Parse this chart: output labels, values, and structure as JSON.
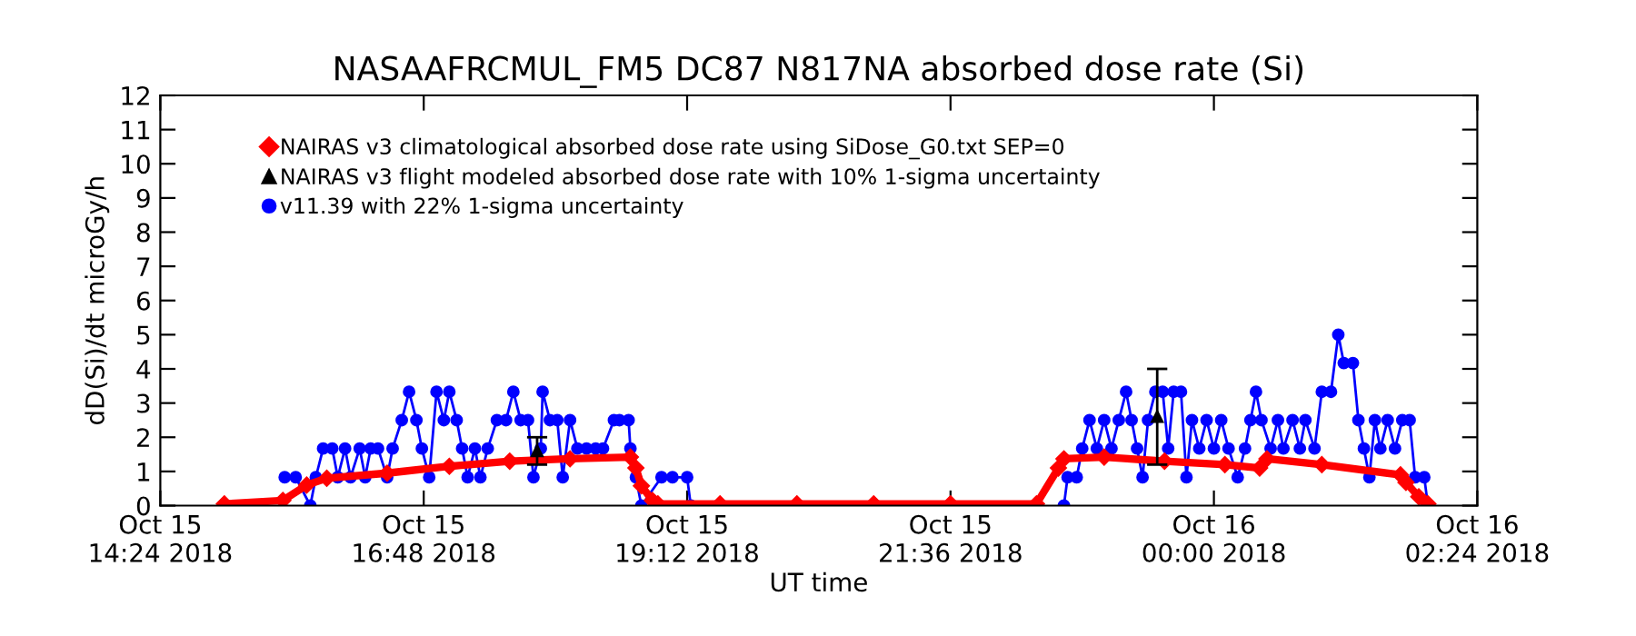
{
  "chart_data": {
    "type": "line",
    "title": "NASAAFRCMUL_FM5 DC87 N817NA absorbed dose rate (Si)",
    "xlabel": "UT time",
    "ylabel": "dD(Si)/dt microGy/h",
    "xlim": [
      "2018-10-15T14:24",
      "2018-10-16T02:24"
    ],
    "xticks": [
      {
        "value": "2018-10-15T14:24",
        "label": "Oct 15\n14:24 2018"
      },
      {
        "value": "2018-10-15T16:48",
        "label": "Oct 15\n16:48 2018"
      },
      {
        "value": "2018-10-15T19:12",
        "label": "Oct 15\n19:12 2018"
      },
      {
        "value": "2018-10-15T21:36",
        "label": "Oct 15\n21:36 2018"
      },
      {
        "value": "2018-10-16T00:00",
        "label": "Oct 16\n00:00 2018"
      },
      {
        "value": "2018-10-16T02:24",
        "label": "Oct 16\n02:24 2018"
      }
    ],
    "ylim": [
      0,
      12
    ],
    "yticks": [
      0,
      1,
      2,
      3,
      4,
      5,
      6,
      7,
      8,
      9,
      10,
      11,
      12
    ],
    "grid": false,
    "legend": "top left",
    "series": [
      {
        "name": "NAIRAS v3 climatological absorbed dose rate using SiDose_G0.txt SEP=0",
        "marker": "diamond",
        "line_style": "solid",
        "color": "#ff0000",
        "x": [
          "2018-10-15T14:59",
          "2018-10-15T15:31",
          "2018-10-15T15:44",
          "2018-10-15T15:55",
          "2018-10-15T16:28",
          "2018-10-15T17:02",
          "2018-10-15T17:35",
          "2018-10-15T18:08",
          "2018-10-15T18:41",
          "2018-10-15T18:44",
          "2018-10-15T18:47",
          "2018-10-15T18:53",
          "2018-10-15T18:56",
          "2018-10-15T19:30",
          "2018-10-15T20:12",
          "2018-10-15T20:54",
          "2018-10-15T21:36",
          "2018-10-15T22:23",
          "2018-10-15T22:35",
          "2018-10-15T22:38",
          "2018-10-15T23:00",
          "2018-10-15T23:33",
          "2018-10-16T00:06",
          "2018-10-16T00:25",
          "2018-10-16T00:29",
          "2018-10-16T00:59",
          "2018-10-16T01:42",
          "2018-10-16T01:45",
          "2018-10-16T01:52",
          "2018-10-16T01:57"
        ],
        "values": [
          0.05,
          0.15,
          0.6,
          0.8,
          0.95,
          1.15,
          1.3,
          1.37,
          1.42,
          1.1,
          0.58,
          0.15,
          0.05,
          0.05,
          0.05,
          0.05,
          0.05,
          0.05,
          1.1,
          1.37,
          1.42,
          1.3,
          1.2,
          1.1,
          1.37,
          1.2,
          0.9,
          0.68,
          0.26,
          0.05
        ]
      },
      {
        "name": "NAIRAS v3 flight modeled absorbed dose rate with 10% 1-sigma uncertainty",
        "type": "scatter",
        "marker": "triangle",
        "color": "#000000",
        "x": [
          "2018-10-15T17:50",
          "2018-10-15T23:29"
        ],
        "values": [
          1.6,
          2.6
        ],
        "errors": [
          [
            1.2,
            2.0
          ],
          [
            1.2,
            4.0
          ]
        ]
      },
      {
        "name": "v11.39 with 22% 1-sigma uncertainty",
        "marker": "circle",
        "line_style": "solid",
        "color": "#0000ff",
        "x": [
          "2018-10-15T15:32",
          "2018-10-15T15:38",
          "2018-10-15T15:46",
          "2018-10-15T15:49",
          "2018-10-15T15:53",
          "2018-10-15T15:58",
          "2018-10-15T16:01",
          "2018-10-15T16:05",
          "2018-10-15T16:08",
          "2018-10-15T16:13",
          "2018-10-15T16:16",
          "2018-10-15T16:19",
          "2018-10-15T16:23",
          "2018-10-15T16:28",
          "2018-10-15T16:31",
          "2018-10-15T16:36",
          "2018-10-15T16:40",
          "2018-10-15T16:44",
          "2018-10-15T16:47",
          "2018-10-15T16:51",
          "2018-10-15T16:55",
          "2018-10-15T16:59",
          "2018-10-15T17:02",
          "2018-10-15T17:06",
          "2018-10-15T17:09",
          "2018-10-15T17:12",
          "2018-10-15T17:16",
          "2018-10-15T17:19",
          "2018-10-15T17:23",
          "2018-10-15T17:28",
          "2018-10-15T17:33",
          "2018-10-15T17:37",
          "2018-10-15T17:41",
          "2018-10-15T17:45",
          "2018-10-15T17:48",
          "2018-10-15T17:52",
          "2018-10-15T17:53",
          "2018-10-15T17:57",
          "2018-10-15T18:01",
          "2018-10-15T18:04",
          "2018-10-15T18:08",
          "2018-10-15T18:12",
          "2018-10-15T18:17",
          "2018-10-15T18:22",
          "2018-10-15T18:26",
          "2018-10-15T18:32",
          "2018-10-15T18:35",
          "2018-10-15T18:40",
          "2018-10-15T18:41",
          "2018-10-15T18:44",
          "2018-10-15T18:47",
          "2018-10-15T18:58",
          "2018-10-15T19:04",
          "2018-10-15T19:12",
          "2018-10-15T19:14",
          "2018-10-15T20:54",
          "2018-10-15T22:38",
          "2018-10-15T22:40",
          "2018-10-15T22:45",
          "2018-10-15T22:48",
          "2018-10-15T22:52",
          "2018-10-15T22:56",
          "2018-10-15T23:00",
          "2018-10-15T23:04",
          "2018-10-15T23:08",
          "2018-10-15T23:12",
          "2018-10-15T23:15",
          "2018-10-15T23:18",
          "2018-10-15T23:21",
          "2018-10-15T23:24",
          "2018-10-15T23:28",
          "2018-10-15T23:32",
          "2018-10-15T23:35",
          "2018-10-15T23:38",
          "2018-10-15T23:42",
          "2018-10-15T23:45",
          "2018-10-15T23:48",
          "2018-10-15T23:52",
          "2018-10-15T23:56",
          "2018-10-16T00:00",
          "2018-10-16T00:04",
          "2018-10-16T00:08",
          "2018-10-16T00:13",
          "2018-10-16T00:17",
          "2018-10-16T00:20",
          "2018-10-16T00:23",
          "2018-10-16T00:26",
          "2018-10-16T00:31",
          "2018-10-16T00:35",
          "2018-10-16T00:38",
          "2018-10-16T00:43",
          "2018-10-16T00:47",
          "2018-10-16T00:50",
          "2018-10-16T00:55",
          "2018-10-16T00:59",
          "2018-10-16T01:04",
          "2018-10-16T01:08",
          "2018-10-16T01:11",
          "2018-10-16T01:16",
          "2018-10-16T01:19",
          "2018-10-16T01:22",
          "2018-10-16T01:25",
          "2018-10-16T01:28",
          "2018-10-16T01:31",
          "2018-10-16T01:35",
          "2018-10-16T01:39",
          "2018-10-16T01:43",
          "2018-10-16T01:47",
          "2018-10-16T01:50",
          "2018-10-16T01:55",
          "2018-10-16T01:57"
        ],
        "values": [
          0.83,
          0.83,
          0,
          0.83,
          1.67,
          1.67,
          0.83,
          1.67,
          0.83,
          1.67,
          0.83,
          1.67,
          1.67,
          0.83,
          1.67,
          2.5,
          3.33,
          2.5,
          1.67,
          0.83,
          3.33,
          2.5,
          3.33,
          2.5,
          1.67,
          0.83,
          1.67,
          0.83,
          1.67,
          2.5,
          2.5,
          3.33,
          2.5,
          2.5,
          0.83,
          1.67,
          3.33,
          2.5,
          2.5,
          0.83,
          2.5,
          1.67,
          1.67,
          1.67,
          1.67,
          2.5,
          2.5,
          2.5,
          1.67,
          0.83,
          0,
          0.83,
          0.83,
          0.83,
          0,
          null,
          0,
          0.83,
          0.83,
          1.67,
          2.5,
          1.67,
          2.5,
          1.67,
          2.5,
          3.33,
          2.5,
          1.67,
          0.83,
          2.5,
          3.33,
          3.33,
          1.67,
          3.33,
          3.33,
          0.83,
          2.5,
          1.67,
          2.5,
          1.67,
          2.5,
          1.67,
          0.83,
          1.67,
          2.5,
          3.33,
          2.5,
          1.67,
          2.5,
          1.67,
          2.5,
          1.67,
          2.5,
          1.67,
          3.33,
          3.33,
          5.0,
          4.17,
          4.17,
          2.5,
          1.67,
          0.83,
          2.5,
          1.67,
          2.5,
          1.67,
          2.5,
          2.5,
          0.83,
          0.83,
          0
        ]
      }
    ]
  }
}
